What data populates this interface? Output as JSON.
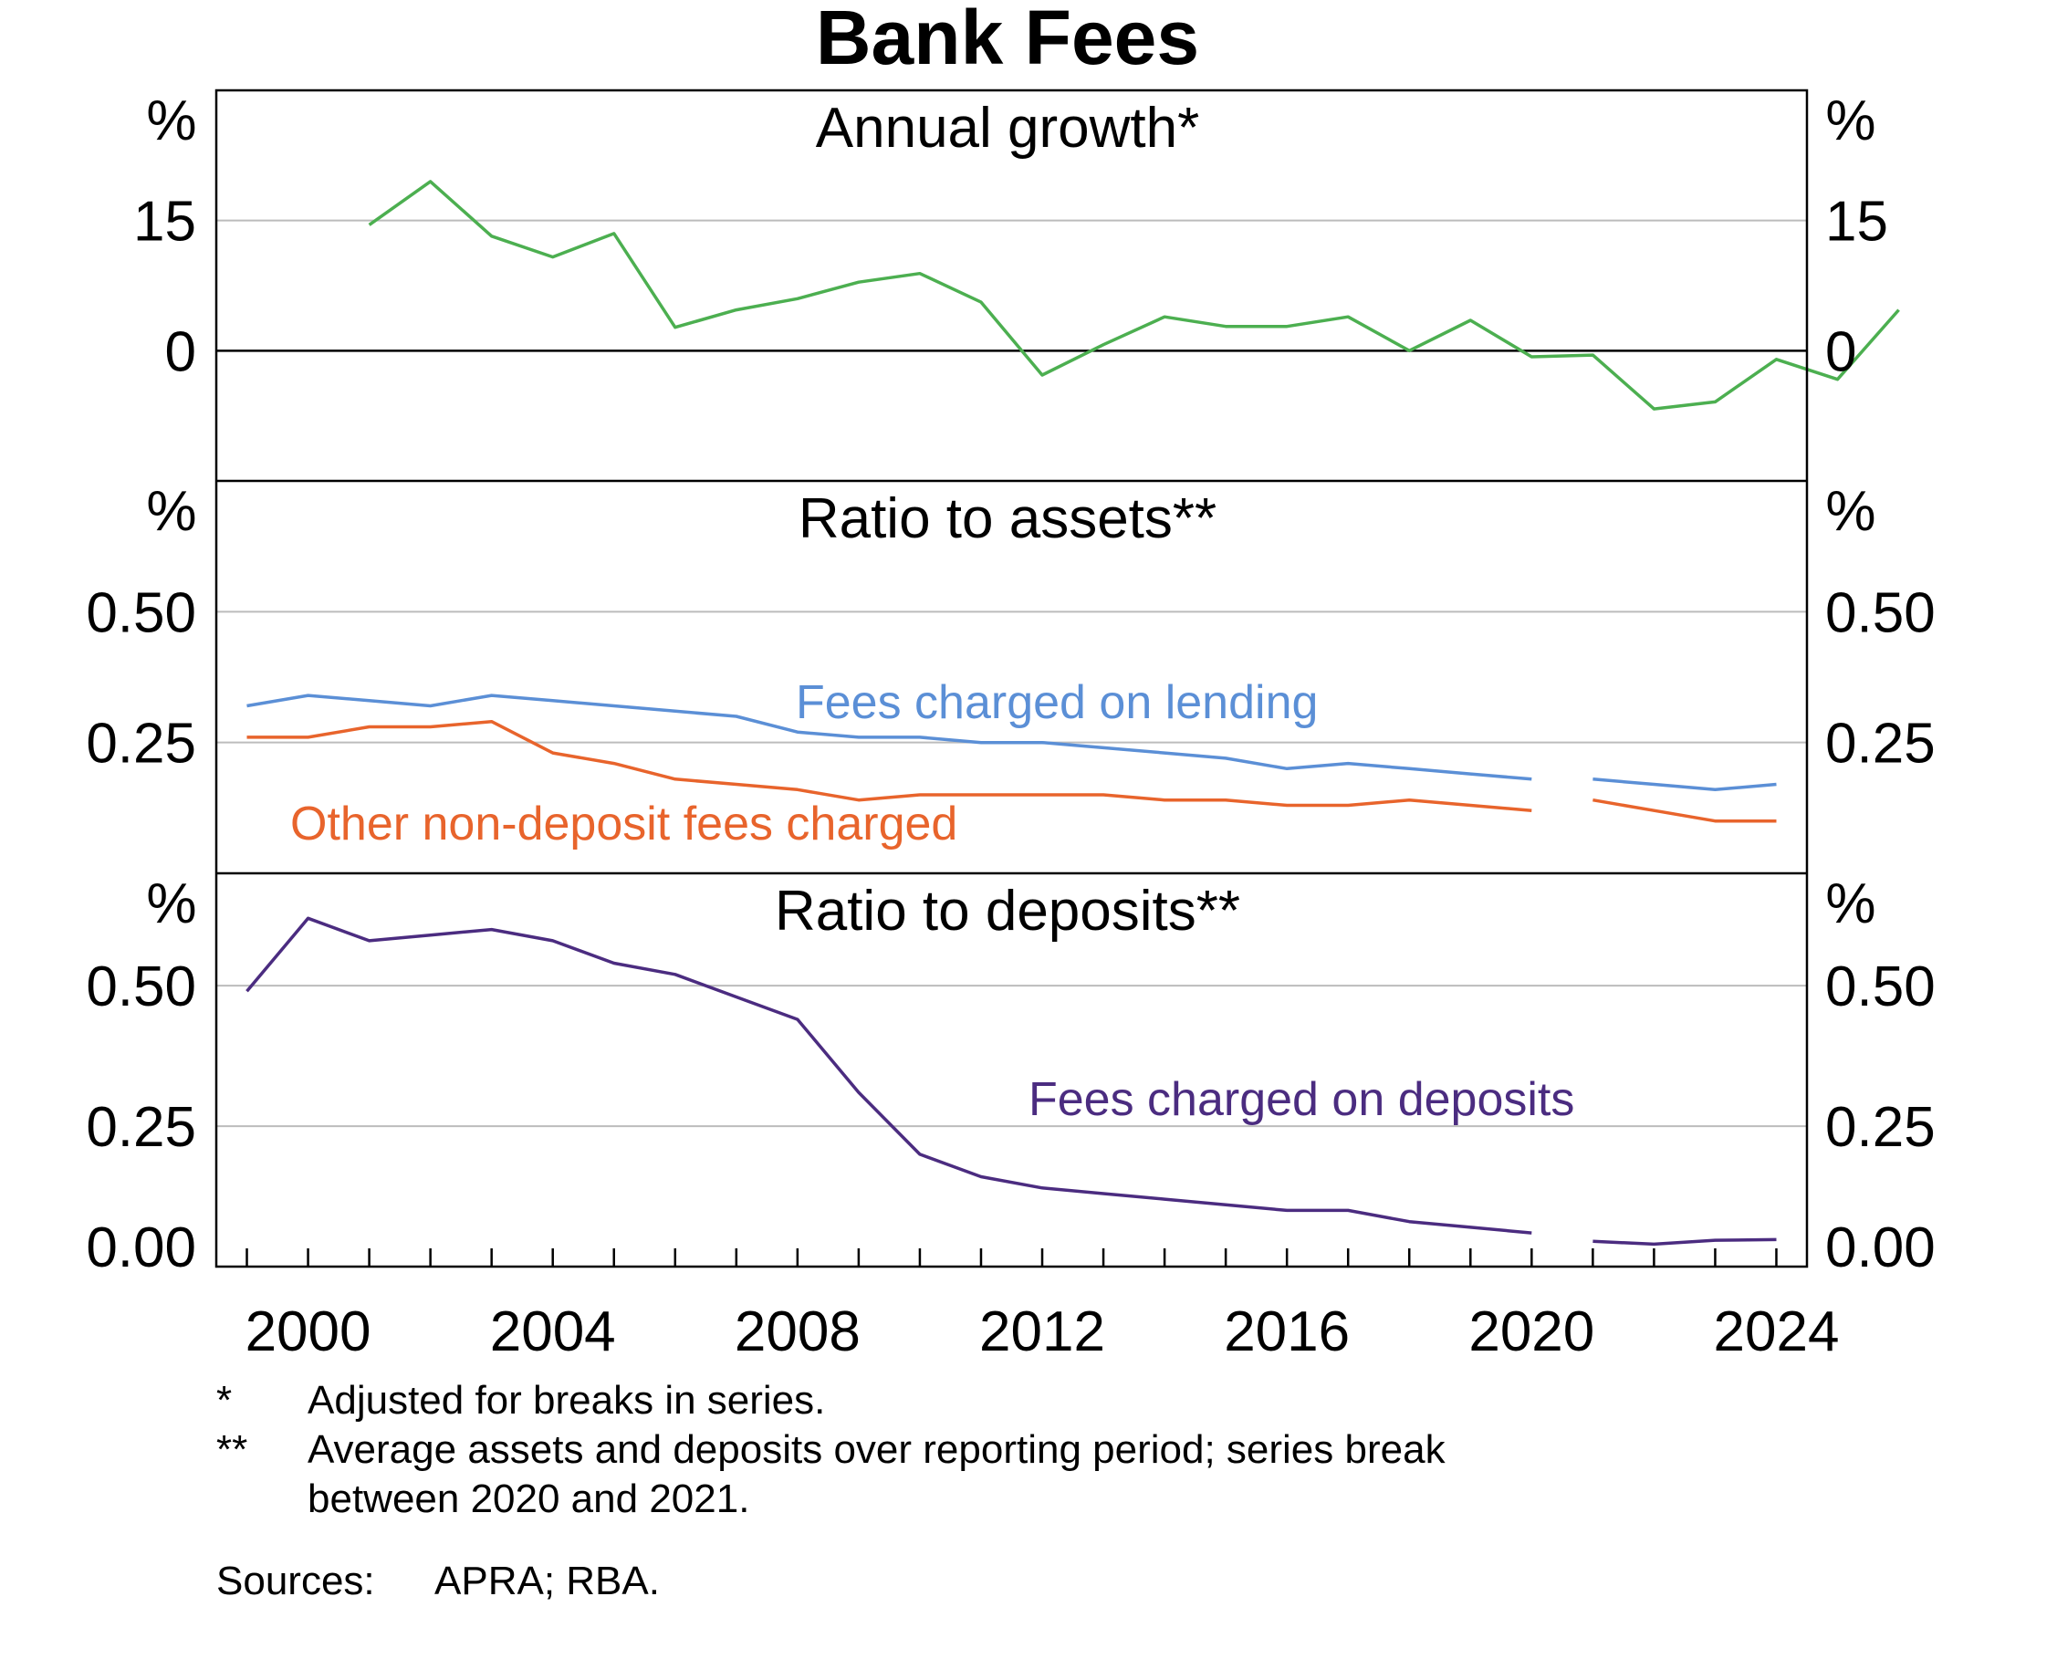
{
  "chart_data": {
    "title": "Bank Fees",
    "type": "line",
    "x_range": [
      1998.5,
      2024.5
    ],
    "x_ticks": [
      "2000",
      "2004",
      "2008",
      "2012",
      "2016",
      "2020",
      "2024"
    ],
    "grid": true,
    "panels": [
      {
        "title": "Annual growth*",
        "unit": "%",
        "ylim": [
          -15,
          30
        ],
        "y_ticks": [
          "15",
          "0"
        ],
        "series": [
          {
            "name": "",
            "color": "#4caf50",
            "points": [
              [
                2001,
                14.5
              ],
              [
                2002,
                19.5
              ],
              [
                2003,
                13.2
              ],
              [
                2004,
                10.8
              ],
              [
                2005,
                13.5
              ],
              [
                2006,
                2.7
              ],
              [
                2007,
                4.7
              ],
              [
                2008,
                6
              ],
              [
                2009,
                7.9
              ],
              [
                2010,
                8.9
              ],
              [
                2011,
                5.6
              ],
              [
                2012,
                -2.8
              ],
              [
                2013,
                0.7
              ],
              [
                2014,
                3.9
              ],
              [
                2015,
                2.8
              ],
              [
                2016,
                2.8
              ],
              [
                2017,
                3.9
              ],
              [
                2018,
                0
              ],
              [
                2019,
                3.5
              ],
              [
                2020,
                -0.7
              ],
              [
                2021,
                -0.5
              ],
              [
                2022,
                -6.7
              ],
              [
                2023,
                -5.9
              ],
              [
                2024,
                -1
              ],
              [
                2025,
                -3.3
              ],
              [
                2026,
                4.7
              ]
            ]
          }
        ]
      },
      {
        "title": "Ratio to assets**",
        "unit": "%",
        "ylim": [
          0,
          0.75
        ],
        "y_ticks": [
          "0.50",
          "0.25"
        ],
        "series": [
          {
            "name": "Fees charged on lending",
            "color": "#5b8fd6",
            "segments": [
              [
                [
                  1999,
                  0.32
                ],
                [
                  2000,
                  0.34
                ],
                [
                  2001,
                  0.33
                ],
                [
                  2002,
                  0.32
                ],
                [
                  2003,
                  0.34
                ],
                [
                  2004,
                  0.33
                ],
                [
                  2005,
                  0.32
                ],
                [
                  2006,
                  0.31
                ],
                [
                  2007,
                  0.3
                ],
                [
                  2008,
                  0.27
                ],
                [
                  2009,
                  0.26
                ],
                [
                  2010,
                  0.26
                ],
                [
                  2011,
                  0.25
                ],
                [
                  2012,
                  0.25
                ],
                [
                  2013,
                  0.24
                ],
                [
                  2014,
                  0.23
                ],
                [
                  2015,
                  0.22
                ],
                [
                  2016,
                  0.2
                ],
                [
                  2017,
                  0.21
                ],
                [
                  2018,
                  0.2
                ],
                [
                  2019,
                  0.19
                ],
                [
                  2020,
                  0.18
                ]
              ],
              [
                [
                  2021,
                  0.18
                ],
                [
                  2022,
                  0.17
                ],
                [
                  2023,
                  0.16
                ],
                [
                  2024,
                  0.17
                ]
              ]
            ]
          },
          {
            "name": "Other non-deposit fees charged",
            "color": "#e8642c",
            "segments": [
              [
                [
                  1999,
                  0.26
                ],
                [
                  2000,
                  0.26
                ],
                [
                  2001,
                  0.28
                ],
                [
                  2002,
                  0.28
                ],
                [
                  2003,
                  0.29
                ],
                [
                  2004,
                  0.23
                ],
                [
                  2005,
                  0.21
                ],
                [
                  2006,
                  0.18
                ],
                [
                  2007,
                  0.17
                ],
                [
                  2008,
                  0.16
                ],
                [
                  2009,
                  0.14
                ],
                [
                  2010,
                  0.15
                ],
                [
                  2011,
                  0.15
                ],
                [
                  2012,
                  0.15
                ],
                [
                  2013,
                  0.15
                ],
                [
                  2014,
                  0.14
                ],
                [
                  2015,
                  0.14
                ],
                [
                  2016,
                  0.13
                ],
                [
                  2017,
                  0.13
                ],
                [
                  2018,
                  0.14
                ],
                [
                  2019,
                  0.13
                ],
                [
                  2020,
                  0.12
                ]
              ],
              [
                [
                  2021,
                  0.14
                ],
                [
                  2022,
                  0.12
                ],
                [
                  2023,
                  0.1
                ],
                [
                  2024,
                  0.1
                ]
              ]
            ]
          }
        ]
      },
      {
        "title": "Ratio to deposits**",
        "unit": "%",
        "ylim": [
          0,
          0.7
        ],
        "y_ticks": [
          "0.50",
          "0.25",
          "0.00"
        ],
        "series": [
          {
            "name": "Fees charged on deposits",
            "color": "#4b2c80",
            "segments": [
              [
                [
                  1999,
                  0.49
                ],
                [
                  2000,
                  0.62
                ],
                [
                  2001,
                  0.58
                ],
                [
                  2002,
                  0.59
                ],
                [
                  2003,
                  0.6
                ],
                [
                  2004,
                  0.58
                ],
                [
                  2005,
                  0.54
                ],
                [
                  2006,
                  0.52
                ],
                [
                  2007,
                  0.48
                ],
                [
                  2008,
                  0.44
                ],
                [
                  2009,
                  0.31
                ],
                [
                  2010,
                  0.2
                ],
                [
                  2011,
                  0.16
                ],
                [
                  2012,
                  0.14
                ],
                [
                  2013,
                  0.13
                ],
                [
                  2014,
                  0.12
                ],
                [
                  2015,
                  0.11
                ],
                [
                  2016,
                  0.1
                ],
                [
                  2017,
                  0.1
                ],
                [
                  2018,
                  0.08
                ],
                [
                  2019,
                  0.07
                ],
                [
                  2020,
                  0.06
                ]
              ],
              [
                [
                  2021,
                  0.045
                ],
                [
                  2022,
                  0.04
                ],
                [
                  2023,
                  0.047
                ],
                [
                  2024,
                  0.048
                ]
              ]
            ]
          }
        ]
      }
    ]
  },
  "notes": [
    {
      "mark": "*",
      "text": "Adjusted for breaks in series."
    },
    {
      "mark": "**",
      "text": "Average assets and deposits over reporting period; series break"
    },
    {
      "mark": "",
      "text": "between 2020 and 2021."
    }
  ],
  "sources": {
    "label": "Sources:",
    "text": "APRA; RBA."
  }
}
